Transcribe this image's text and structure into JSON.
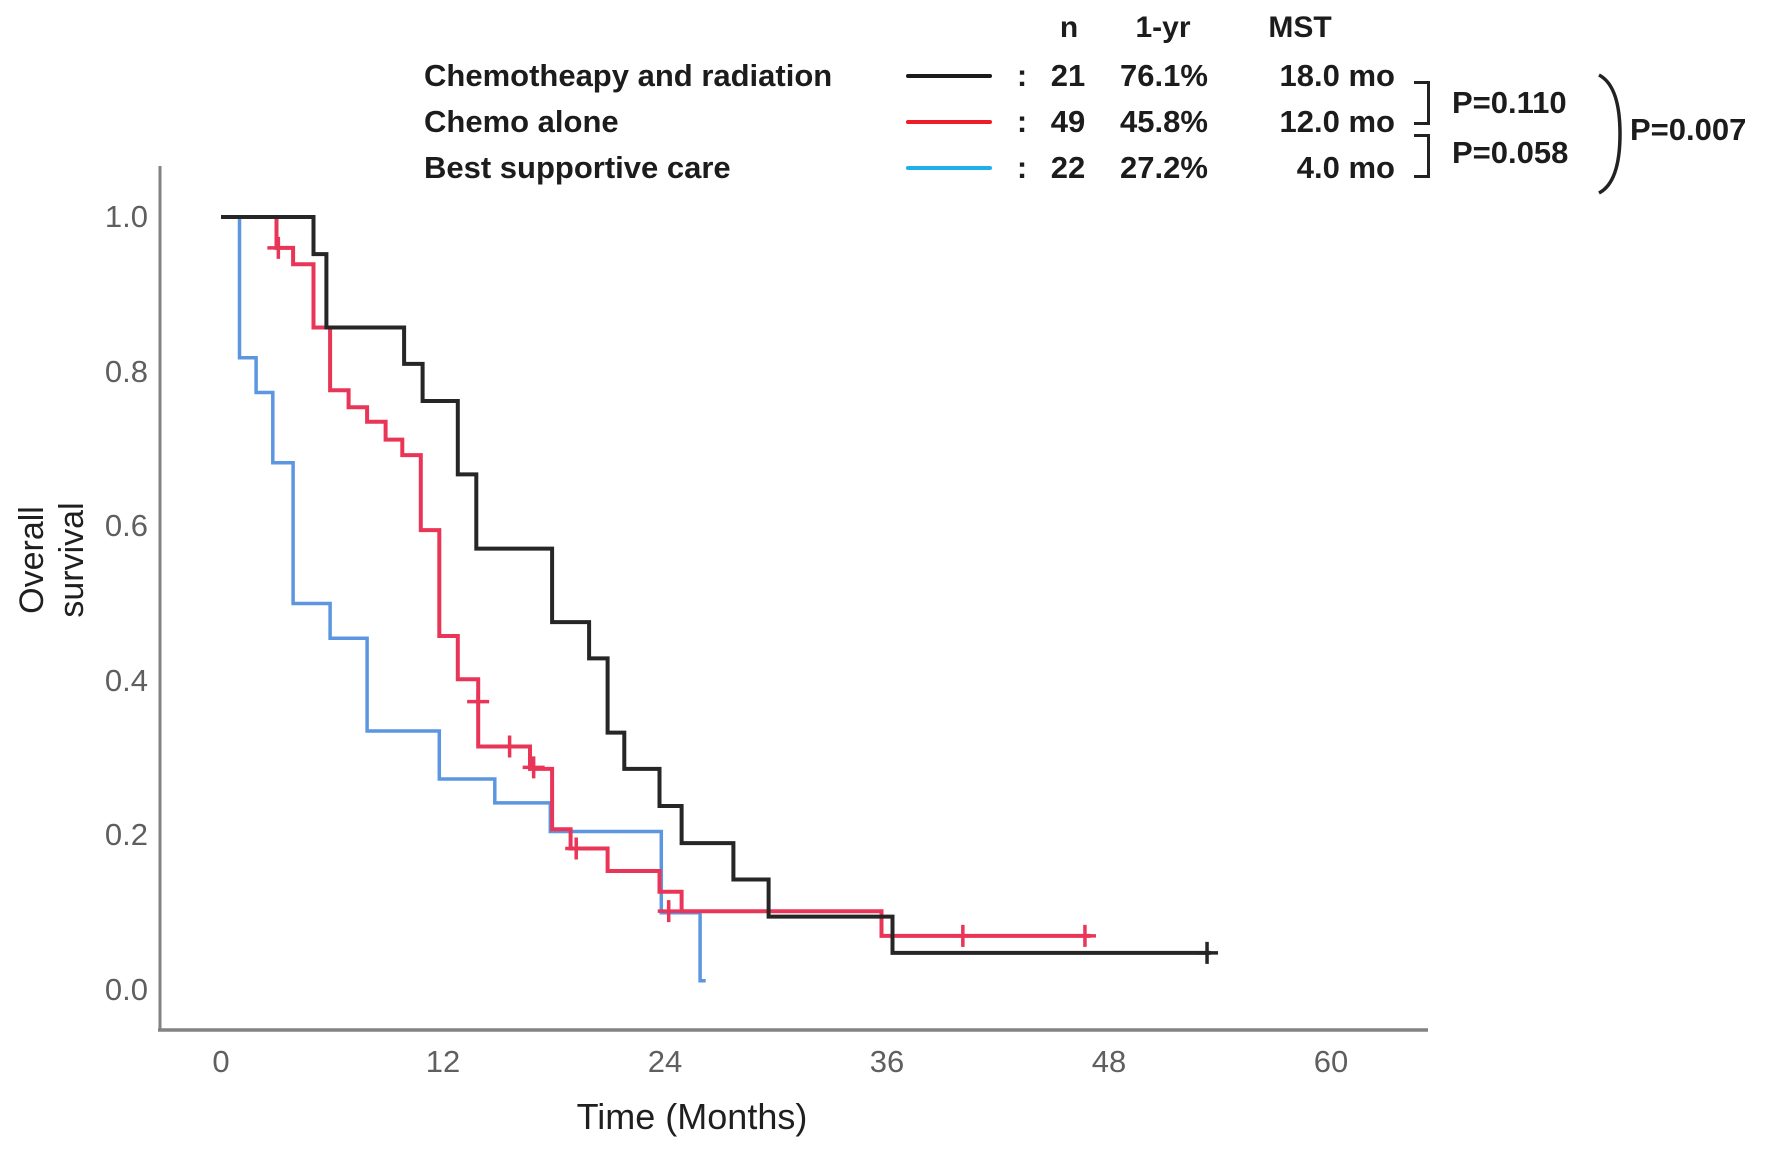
{
  "legend": {
    "columns": {
      "n": "n",
      "one_yr": "1-yr",
      "mst": "MST"
    },
    "colon": ":",
    "rows": [
      {
        "label": "Chemotheapy and radiation",
        "n": "21",
        "one_yr": "76.1%",
        "mst": "18.0 mo",
        "swatch_color": "#1a1a1a"
      },
      {
        "label": "Chemo alone",
        "n": "49",
        "one_yr": "45.8%",
        "mst": "12.0 mo",
        "swatch_color": "#ee1d25"
      },
      {
        "label": "Best supportive care",
        "n": "22",
        "one_yr": "27.2%",
        "mst": "4.0 mo",
        "swatch_color": "#1fb0ea"
      }
    ],
    "pvalues": {
      "rows_1_2": "P=0.110",
      "rows_2_3": "P=0.058",
      "overall": "P=0.007"
    }
  },
  "chart_data": {
    "type": "line",
    "subtype": "kaplan-meier-step",
    "title": "",
    "xlabel": "Time (Months)",
    "ylabel": "Overall survival",
    "xlim": [
      0,
      65
    ],
    "ylim": [
      0.0,
      1.0
    ],
    "grid": false,
    "legend_position": "top-right",
    "x_ticks": [
      "0",
      "12",
      "24",
      "36",
      "48",
      "60"
    ],
    "y_ticks": [
      "0.0",
      "0.2",
      "0.4",
      "0.6",
      "0.8",
      "1.0"
    ],
    "series": [
      {
        "id": "chemoradiation",
        "name": "Chemotheapy and radiation",
        "n": 21,
        "one_yr_survival_pct": 76.1,
        "median_survival_months": 18.0,
        "color": "#262626",
        "line_width": 4,
        "start": [
          0,
          1.0
        ],
        "steps": [
          [
            5,
            0.952
          ],
          [
            5.7,
            0.857
          ],
          [
            9.9,
            0.81
          ],
          [
            10.9,
            0.762
          ],
          [
            12.8,
            0.667
          ],
          [
            13.8,
            0.571
          ],
          [
            17.9,
            0.476
          ],
          [
            19.9,
            0.429
          ],
          [
            20.9,
            0.333
          ],
          [
            21.8,
            0.286
          ],
          [
            23.7,
            0.238
          ],
          [
            24.9,
            0.19
          ],
          [
            27.7,
            0.143
          ],
          [
            29.6,
            0.095
          ],
          [
            36.3,
            0.048
          ]
        ],
        "end_time": 53.5,
        "censor_marks": [
          [
            53.3,
            0.048
          ]
        ]
      },
      {
        "id": "chemo-alone",
        "name": "Chemo alone",
        "n": 49,
        "one_yr_survival_pct": 45.8,
        "median_survival_months": 12.0,
        "color": "#e93558",
        "line_width": 4,
        "start": [
          0,
          1.0
        ],
        "steps": [
          [
            3,
            0.96
          ],
          [
            3.9,
            0.939
          ],
          [
            5,
            0.857
          ],
          [
            5.9,
            0.776
          ],
          [
            6.9,
            0.754
          ],
          [
            7.9,
            0.735
          ],
          [
            8.9,
            0.712
          ],
          [
            9.8,
            0.692
          ],
          [
            10.8,
            0.595
          ],
          [
            11.8,
            0.458
          ],
          [
            12.8,
            0.402
          ],
          [
            13.9,
            0.315
          ],
          [
            16.7,
            0.286
          ],
          [
            17.9,
            0.208
          ],
          [
            18.9,
            0.183
          ],
          [
            20.9,
            0.154
          ],
          [
            23.7,
            0.127
          ],
          [
            24.9,
            0.102
          ],
          [
            35.7,
            0.07
          ]
        ],
        "end_time": 47.0,
        "censor_marks": [
          [
            3.1,
            0.96
          ],
          [
            13.9,
            0.373
          ],
          [
            15.6,
            0.315
          ],
          [
            16.9,
            0.288
          ],
          [
            19.2,
            0.183
          ],
          [
            24.2,
            0.102
          ],
          [
            40.1,
            0.07
          ],
          [
            46.7,
            0.07
          ]
        ]
      },
      {
        "id": "best-supportive-care",
        "name": "Best supportive care",
        "n": 22,
        "one_yr_survival_pct": 27.2,
        "median_survival_months": 4.0,
        "color": "#5c96e0",
        "line_width": 3.5,
        "start": [
          0,
          1.0
        ],
        "steps": [
          [
            1,
            0.818
          ],
          [
            1.9,
            0.773
          ],
          [
            2.8,
            0.682
          ],
          [
            3.9,
            0.5
          ],
          [
            5.9,
            0.455
          ],
          [
            7.9,
            0.335
          ],
          [
            11.8,
            0.273
          ],
          [
            14.8,
            0.242
          ],
          [
            17.8,
            0.205
          ],
          [
            23.8,
            0.1
          ],
          [
            25.9,
            0.012
          ]
        ],
        "end_time": 26.2,
        "censor_marks": []
      }
    ]
  },
  "style": {
    "axis_color": "#828282",
    "tick_color": "#5f5f5f"
  }
}
